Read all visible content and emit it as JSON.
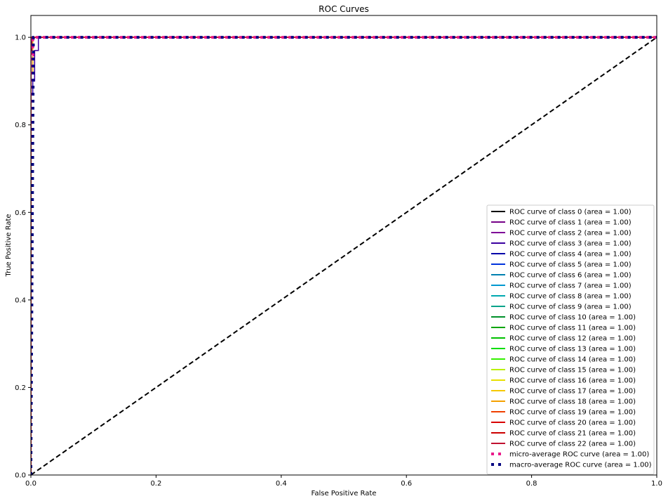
{
  "chart_data": {
    "type": "line",
    "title": "ROC Curves",
    "xlabel": "False Positive Rate",
    "ylabel": "True Positive Rate",
    "xlim": [
      0.0,
      1.0
    ],
    "ylim": [
      0.0,
      1.05
    ],
    "x_ticks": [
      "0.0",
      "0.2",
      "0.4",
      "0.6",
      "0.8",
      "1.0"
    ],
    "y_ticks": [
      "0.0",
      "0.2",
      "0.4",
      "0.6",
      "0.8",
      "1.0"
    ],
    "x_tick_values": [
      0.0,
      0.2,
      0.4,
      0.6,
      0.8,
      1.0
    ],
    "y_tick_values": [
      0.0,
      0.2,
      0.4,
      0.6,
      0.8,
      1.0
    ],
    "grid": false,
    "legend_position": "lower-right",
    "diagonal": {
      "x": [
        0,
        1
      ],
      "y": [
        0,
        1
      ],
      "color": "#000000",
      "style": "dashed"
    },
    "series": [
      {
        "name": "ROC curve of class 0 (area = 1.00)",
        "color": "#000000",
        "x": [
          0,
          0,
          1
        ],
        "y": [
          0,
          1,
          1
        ]
      },
      {
        "name": "ROC curve of class 1 (area = 1.00)",
        "color": "#750087",
        "x": [
          0,
          0,
          0.002,
          0.002,
          1
        ],
        "y": [
          0,
          0.97,
          0.97,
          1,
          1
        ]
      },
      {
        "name": "ROC curve of class 2 (area = 1.00)",
        "color": "#7e0098",
        "x": [
          0,
          0,
          1
        ],
        "y": [
          0,
          1,
          1
        ]
      },
      {
        "name": "ROC curve of class 3 (area = 1.00)",
        "color": "#3a00a0",
        "x": [
          0,
          0,
          0.003,
          0.003,
          0.006,
          0.006,
          0.012,
          0.012,
          1
        ],
        "y": [
          0,
          0.87,
          0.87,
          0.9,
          0.9,
          0.97,
          0.97,
          1,
          1
        ]
      },
      {
        "name": "ROC curve of class 4 (area = 1.00)",
        "color": "#0000aa",
        "x": [
          0,
          0,
          1
        ],
        "y": [
          0,
          1,
          1
        ]
      },
      {
        "name": "ROC curve of class 5 (area = 1.00)",
        "color": "#0033dd",
        "x": [
          0,
          0,
          1
        ],
        "y": [
          0,
          1,
          1
        ]
      },
      {
        "name": "ROC curve of class 6 (area = 1.00)",
        "color": "#0080b0",
        "x": [
          0,
          0,
          1
        ],
        "y": [
          0,
          1,
          1
        ]
      },
      {
        "name": "ROC curve of class 7 (area = 1.00)",
        "color": "#0098d0",
        "x": [
          0,
          0,
          1
        ],
        "y": [
          0,
          1,
          1
        ]
      },
      {
        "name": "ROC curve of class 8 (area = 1.00)",
        "color": "#00a9b0",
        "x": [
          0,
          0,
          1
        ],
        "y": [
          0,
          1,
          1
        ]
      },
      {
        "name": "ROC curve of class 9 (area = 1.00)",
        "color": "#00a38a",
        "x": [
          0,
          0,
          1
        ],
        "y": [
          0,
          1,
          1
        ]
      },
      {
        "name": "ROC curve of class 10 (area = 1.00)",
        "color": "#00902a",
        "x": [
          0,
          0,
          1
        ],
        "y": [
          0,
          1,
          1
        ]
      },
      {
        "name": "ROC curve of class 11 (area = 1.00)",
        "color": "#00a500",
        "x": [
          0,
          0,
          1
        ],
        "y": [
          0,
          1,
          1
        ]
      },
      {
        "name": "ROC curve of class 12 (area = 1.00)",
        "color": "#00c000",
        "x": [
          0,
          0,
          1
        ],
        "y": [
          0,
          1,
          1
        ]
      },
      {
        "name": "ROC curve of class 13 (area = 1.00)",
        "color": "#00dd00",
        "x": [
          0,
          0,
          1
        ],
        "y": [
          0,
          1,
          1
        ]
      },
      {
        "name": "ROC curve of class 14 (area = 1.00)",
        "color": "#33f000",
        "x": [
          0,
          0,
          1
        ],
        "y": [
          0,
          1,
          1
        ]
      },
      {
        "name": "ROC curve of class 15 (area = 1.00)",
        "color": "#bbf000",
        "x": [
          0,
          0,
          1
        ],
        "y": [
          0,
          1,
          1
        ]
      },
      {
        "name": "ROC curve of class 16 (area = 1.00)",
        "color": "#e8e000",
        "x": [
          0,
          0,
          1
        ],
        "y": [
          0,
          1,
          1
        ]
      },
      {
        "name": "ROC curve of class 17 (area = 1.00)",
        "color": "#f5c800",
        "x": [
          0,
          0,
          1
        ],
        "y": [
          0,
          1,
          1
        ]
      },
      {
        "name": "ROC curve of class 18 (area = 1.00)",
        "color": "#f5a000",
        "x": [
          0,
          0,
          0.003,
          0.003,
          1
        ],
        "y": [
          0,
          0.92,
          0.92,
          1,
          1
        ]
      },
      {
        "name": "ROC curve of class 19 (area = 1.00)",
        "color": "#f04000",
        "x": [
          0,
          0,
          1
        ],
        "y": [
          0,
          1,
          1
        ]
      },
      {
        "name": "ROC curve of class 20 (area = 1.00)",
        "color": "#d80000",
        "x": [
          0,
          0,
          1
        ],
        "y": [
          0,
          1,
          1
        ]
      },
      {
        "name": "ROC curve of class 21 (area = 1.00)",
        "color": "#cc0000",
        "x": [
          0,
          0,
          1
        ],
        "y": [
          0,
          1,
          1
        ]
      },
      {
        "name": "ROC curve of class 22 (area = 1.00)",
        "color": "#c01030",
        "x": [
          0,
          0,
          1
        ],
        "y": [
          0,
          1,
          1
        ]
      },
      {
        "name": "micro-average ROC curve (area = 1.00)",
        "color": "#ea1a8a",
        "style": "dotted",
        "x": [
          0,
          0,
          0.003,
          0.003,
          1
        ],
        "y": [
          0,
          0.96,
          0.96,
          1,
          1
        ]
      },
      {
        "name": "macro-average ROC curve (area = 1.00)",
        "color": "#000080",
        "style": "dotted",
        "x": [
          0,
          0.004,
          1
        ],
        "y": [
          0,
          1,
          1
        ]
      }
    ]
  }
}
